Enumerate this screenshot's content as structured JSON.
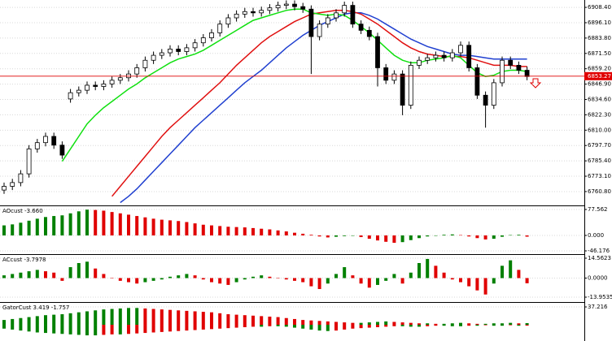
{
  "chart_data": [
    {
      "type": "candlestick",
      "open": [
        6762,
        6765,
        6768,
        6775,
        6795,
        6800,
        6805,
        6798,
        6835,
        6840,
        6842,
        6846,
        6845,
        6847,
        6850,
        6852,
        6855,
        6860,
        6866,
        6870,
        6872,
        6875,
        6873,
        6876,
        6880,
        6884,
        6888,
        6895,
        6900,
        6903,
        6905,
        6904,
        6906,
        6908,
        6910,
        6911,
        6909,
        6907,
        6885,
        6895,
        6900,
        6904,
        6910,
        6895,
        6890,
        6885,
        6860,
        6850,
        6855,
        6830,
        6862,
        6866,
        6868,
        6870,
        6868,
        6872,
        6878,
        6860,
        6838,
        6830,
        6848,
        6866,
        6862,
        6858
      ],
      "high": [
        6768,
        6771,
        6778,
        6798,
        6803,
        6808,
        6808,
        6801,
        6843,
        6845,
        6849,
        6849,
        6850,
        6853,
        6855,
        6858,
        6863,
        6869,
        6873,
        6875,
        6878,
        6878,
        6879,
        6883,
        6887,
        6891,
        6898,
        6903,
        6906,
        6908,
        6908,
        6909,
        6911,
        6913,
        6914,
        6914,
        6912,
        6910,
        6898,
        6903,
        6907,
        6913,
        6913,
        6898,
        6893,
        6888,
        6863,
        6858,
        6858,
        6865,
        6869,
        6871,
        6873,
        6873,
        6875,
        6881,
        6881,
        6863,
        6841,
        6851,
        6869,
        6869,
        6865,
        6861
      ],
      "low": [
        6759,
        6762,
        6765,
        6772,
        6792,
        6797,
        6795,
        6787,
        6832,
        6837,
        6839,
        6842,
        6842,
        6844,
        6847,
        6849,
        6852,
        6857,
        6863,
        6867,
        6869,
        6870,
        6870,
        6873,
        6877,
        6881,
        6885,
        6892,
        6897,
        6900,
        6901,
        6901,
        6903,
        6905,
        6907,
        6906,
        6904,
        6855,
        6882,
        6892,
        6897,
        6901,
        6892,
        6887,
        6882,
        6845,
        6847,
        6847,
        6822,
        6827,
        6859,
        6863,
        6865,
        6865,
        6865,
        6869,
        6857,
        6835,
        6812,
        6827,
        6845,
        6859,
        6855,
        6850
      ],
      "close": [
        6765,
        6768,
        6775,
        6795,
        6800,
        6805,
        6798,
        6790,
        6840,
        6842,
        6846,
        6845,
        6847,
        6850,
        6852,
        6855,
        6860,
        6866,
        6870,
        6872,
        6875,
        6873,
        6876,
        6880,
        6884,
        6888,
        6895,
        6900,
        6903,
        6905,
        6904,
        6906,
        6908,
        6910,
        6911,
        6909,
        6907,
        6885,
        6895,
        6900,
        6904,
        6910,
        6895,
        6890,
        6885,
        6860,
        6850,
        6855,
        6830,
        6862,
        6866,
        6868,
        6870,
        6868,
        6872,
        6878,
        6860,
        6838,
        6830,
        6848,
        6866,
        6862,
        6858,
        6853
      ],
      "up_color": "#ffffff",
      "down_color": "#000000",
      "lines": [
        {
          "color": "#2040d0",
          "values": [
            null,
            null,
            null,
            null,
            null,
            null,
            null,
            null,
            null,
            null,
            null,
            null,
            null,
            null,
            6752,
            6757,
            6763,
            6770,
            6777,
            6784,
            6791,
            6798,
            6805,
            6812,
            6818,
            6824,
            6830,
            6836,
            6842,
            6848,
            6853,
            6858,
            6864,
            6870,
            6876,
            6881,
            6886,
            6890,
            6894,
            6897,
            6900,
            6903,
            6904,
            6904,
            6902,
            6899,
            6895,
            6891,
            6887,
            6883,
            6880,
            6877,
            6875,
            6873,
            6871,
            6870,
            6870,
            6869,
            6868,
            6867,
            6867,
            6867,
            6867,
            6867
          ]
        },
        {
          "color": "#e01010",
          "values": [
            null,
            null,
            null,
            null,
            null,
            null,
            null,
            null,
            null,
            null,
            null,
            null,
            null,
            6757,
            6765,
            6773,
            6781,
            6789,
            6797,
            6805,
            6812,
            6818,
            6824,
            6830,
            6836,
            6842,
            6848,
            6855,
            6862,
            6868,
            6874,
            6880,
            6885,
            6889,
            6893,
            6897,
            6900,
            6903,
            6904,
            6905,
            6906,
            6906,
            6905,
            6903,
            6899,
            6895,
            6890,
            6885,
            6880,
            6876,
            6873,
            6871,
            6870,
            6869,
            6869,
            6869,
            6868,
            6866,
            6864,
            6862,
            6862,
            6862,
            6861,
            6861
          ]
        },
        {
          "color": "#10e010",
          "values": [
            null,
            null,
            null,
            null,
            null,
            null,
            null,
            6785,
            6795,
            6805,
            6815,
            6822,
            6828,
            6833,
            6838,
            6843,
            6847,
            6852,
            6856,
            6860,
            6864,
            6867,
            6869,
            6871,
            6874,
            6878,
            6882,
            6886,
            6890,
            6894,
            6898,
            6900,
            6902,
            6904,
            6906,
            6907,
            6907,
            6904,
            6903,
            6902,
            6903,
            6902,
            6898,
            6893,
            6888,
            6882,
            6876,
            6870,
            6866,
            6864,
            6864,
            6866,
            6867,
            6868,
            6870,
            6868,
            6862,
            6856,
            6853,
            6854,
            6857,
            6858,
            6858,
            6857
          ]
        }
      ],
      "current_price": 6853.27,
      "current_price_color": "#e00000",
      "ylim": [
        6749.7,
        6914.3
      ],
      "yticks": [
        {
          "value": 6908.4,
          "label": "6908.40"
        },
        {
          "value": 6896.1,
          "label": "6896.10"
        },
        {
          "value": 6883.8,
          "label": "6883.80"
        },
        {
          "value": 6871.5,
          "label": "6871.50"
        },
        {
          "value": 6859.2,
          "label": "6859.20"
        },
        {
          "value": 6846.9,
          "label": "6846.90"
        },
        {
          "value": 6834.6,
          "label": "6834.60"
        },
        {
          "value": 6822.3,
          "label": "6822.30"
        },
        {
          "value": 6810,
          "label": "6810.00"
        },
        {
          "value": 6797.7,
          "label": "6797.70"
        },
        {
          "value": 6785.4,
          "label": "6785.40"
        },
        {
          "value": 6773.1,
          "label": "6773.10"
        },
        {
          "value": 6760.8,
          "label": "6760.80"
        }
      ],
      "grid": true
    },
    {
      "type": "bar",
      "title": "AOcust -3.660",
      "values": [
        30,
        33,
        38,
        44,
        50,
        55,
        58,
        60,
        66,
        72,
        77,
        76,
        74,
        70,
        66,
        62,
        58,
        54,
        50,
        47,
        45,
        43,
        40,
        36,
        32,
        30,
        28,
        26,
        25,
        24,
        22,
        20,
        18,
        15,
        12,
        8,
        5,
        2,
        -3,
        -6,
        -4,
        -2,
        -1,
        -5,
        -10,
        -15,
        -19,
        -22,
        -20,
        -14,
        -8,
        -3,
        0,
        2,
        3,
        1,
        -3,
        -8,
        -12,
        -10,
        -4,
        1,
        2,
        -3.66
      ],
      "up_color": "#008000",
      "down_color": "#e00000",
      "ylim": [
        -55.9,
        89.7
      ],
      "yticks": [
        77.562,
        {
          "value": 0,
          "label": "0.000"
        },
        -46.176
      ],
      "grid": true
    },
    {
      "type": "bar",
      "title": "ACcust -3.7978",
      "values": [
        2,
        3,
        4,
        5,
        6,
        5,
        4,
        -2,
        8,
        11,
        12,
        7,
        3,
        0,
        -2,
        -3,
        -4,
        -3,
        -2,
        -1,
        1,
        2,
        3,
        2,
        -1,
        -3,
        -4,
        -5,
        -3,
        -1,
        1,
        2,
        1,
        0,
        -1,
        -2,
        -3,
        -6,
        -8,
        -4,
        3,
        8,
        2,
        -4,
        -7,
        -5,
        -2,
        3,
        -4,
        4,
        11,
        14,
        9,
        4,
        -1,
        -3,
        -6,
        -9,
        -12,
        -4,
        9,
        13,
        6,
        -3.7978
      ],
      "up_color": "#008000",
      "down_color": "#e00000",
      "ylim": [
        -17.52,
        17.53
      ],
      "yticks": [
        14.5623,
        {
          "value": 0,
          "label": "0.0000"
        },
        -13.9535
      ],
      "grid": true
    },
    {
      "type": "bar",
      "title": "GatorCust 3.419 -1.757",
      "series": [
        {
          "values": [
            10,
            12,
            14,
            16,
            18,
            20,
            21,
            22,
            24,
            26,
            28,
            30,
            32,
            33,
            34,
            35,
            35,
            34,
            33,
            32,
            31,
            30,
            29,
            28,
            27,
            26,
            24,
            22,
            21,
            20,
            19,
            18,
            17,
            16,
            14,
            12,
            10,
            9,
            8,
            7,
            6,
            5,
            4,
            4,
            5,
            6,
            7,
            6,
            5,
            4,
            3,
            3,
            2,
            2,
            3,
            4,
            3,
            2,
            2,
            3,
            3,
            4,
            3,
            3.419
          ]
        },
        {
          "values": [
            -8,
            -10,
            -12,
            -14,
            -16,
            -17,
            -18,
            -19,
            -20,
            -21,
            -22,
            -22,
            -21,
            -20,
            -20,
            -19,
            -18,
            -17,
            -16,
            -15,
            -14,
            -13,
            -12,
            -11,
            -10,
            -9,
            -8,
            -7,
            -6,
            -5,
            -4,
            -4,
            -3,
            -3,
            -4,
            -6,
            -8,
            -10,
            -12,
            -13,
            -12,
            -10,
            -8,
            -7,
            -6,
            -5,
            -4,
            -3,
            -3,
            -4,
            -4,
            -3,
            -2,
            -2,
            -3,
            -3,
            -2,
            -2,
            -1,
            -2,
            -2,
            -1,
            -2,
            -1.757
          ]
        }
      ],
      "up_color": "#008000",
      "down_color": "#e00000",
      "ylim": [
        -33.8,
        47.4
      ],
      "yticks": [
        37.216
      ],
      "grid": true
    }
  ]
}
